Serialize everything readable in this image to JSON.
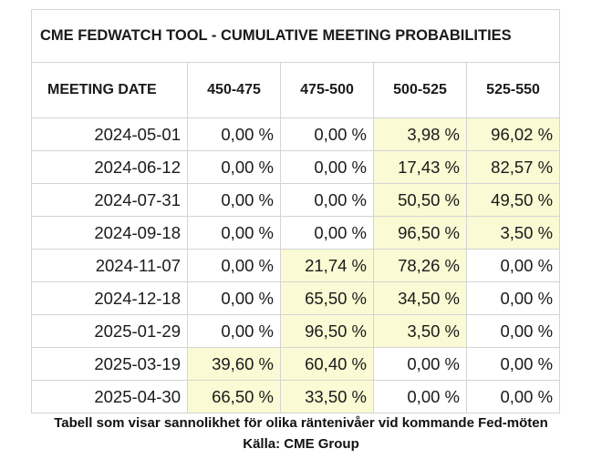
{
  "table": {
    "title": "CME FEDWATCH TOOL - CUMULATIVE MEETING PROBABILITIES",
    "headers": [
      "MEETING DATE",
      "450-475",
      "475-500",
      "500-525",
      "525-550"
    ],
    "rows": [
      {
        "date": "2024-05-01",
        "values": [
          "0,00 %",
          "0,00 %",
          "3,98 %",
          "96,02 %"
        ],
        "highlight": [
          false,
          false,
          true,
          true
        ]
      },
      {
        "date": "2024-06-12",
        "values": [
          "0,00 %",
          "0,00 %",
          "17,43 %",
          "82,57 %"
        ],
        "highlight": [
          false,
          false,
          true,
          true
        ]
      },
      {
        "date": "2024-07-31",
        "values": [
          "0,00 %",
          "0,00 %",
          "50,50 %",
          "49,50 %"
        ],
        "highlight": [
          false,
          false,
          true,
          true
        ]
      },
      {
        "date": "2024-09-18",
        "values": [
          "0,00 %",
          "0,00 %",
          "96,50 %",
          "3,50 %"
        ],
        "highlight": [
          false,
          false,
          true,
          true
        ]
      },
      {
        "date": "2024-11-07",
        "values": [
          "0,00 %",
          "21,74 %",
          "78,26 %",
          "0,00 %"
        ],
        "highlight": [
          false,
          true,
          true,
          false
        ]
      },
      {
        "date": "2024-12-18",
        "values": [
          "0,00 %",
          "65,50 %",
          "34,50 %",
          "0,00 %"
        ],
        "highlight": [
          false,
          true,
          true,
          false
        ]
      },
      {
        "date": "2025-01-29",
        "values": [
          "0,00 %",
          "96,50 %",
          "3,50 %",
          "0,00 %"
        ],
        "highlight": [
          false,
          true,
          true,
          false
        ]
      },
      {
        "date": "2025-03-19",
        "values": [
          "39,60 %",
          "60,40 %",
          "0,00 %",
          "0,00 %"
        ],
        "highlight": [
          true,
          true,
          false,
          false
        ]
      },
      {
        "date": "2025-04-30",
        "values": [
          "66,50 %",
          "33,50 %",
          "0,00 %",
          "0,00 %"
        ],
        "highlight": [
          true,
          true,
          false,
          false
        ]
      }
    ]
  },
  "caption": {
    "line1": "Tabell som visar sannolikhet för olika räntenivåer vid kommande Fed-möten",
    "line2": "Källa: CME Group"
  },
  "colors": {
    "highlight": "#fafad4",
    "border": "#d4d4d4",
    "text": "#1a1a1a"
  }
}
